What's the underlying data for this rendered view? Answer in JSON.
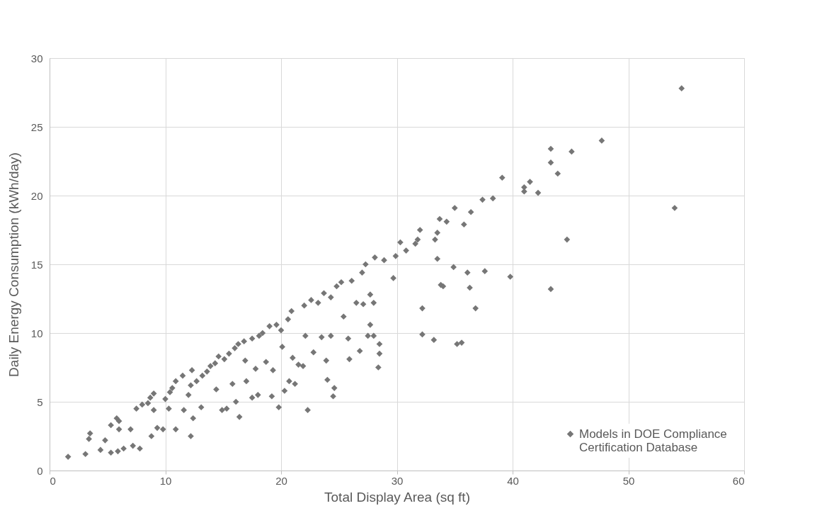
{
  "chart_data": {
    "type": "scatter",
    "xlabel": "Total Display Area (sq ft)",
    "ylabel": "Daily Energy Consumption (kWh/day)",
    "xlim": [
      0,
      60
    ],
    "xticks": [
      0,
      10,
      20,
      30,
      40,
      50,
      60
    ],
    "ylim": [
      0,
      30
    ],
    "yticks": [
      0,
      5,
      10,
      15,
      20,
      25,
      30
    ],
    "grid": true,
    "legend": "bottom right",
    "marker": "diamond",
    "series": [
      {
        "name": "Models in DOE Compliance Certification Database",
        "color": "#767676",
        "x": [
          1.6,
          3.1,
          3.4,
          3.5,
          4.4,
          4.8,
          5.3,
          5.3,
          5.9,
          5.8,
          6.0,
          6.0,
          6.4,
          7.0,
          7.2,
          7.5,
          7.8,
          8.0,
          8.5,
          8.7,
          8.8,
          9.0,
          9.0,
          9.3,
          9.8,
          10.0,
          10.4,
          10.3,
          10.6,
          10.9,
          10.9,
          11.5,
          11.6,
          12.0,
          12.2,
          12.3,
          12.2,
          12.4,
          12.7,
          13.1,
          13.2,
          13.6,
          13.9,
          14.3,
          14.6,
          14.4,
          14.9,
          15.1,
          15.3,
          15.5,
          15.8,
          16.0,
          16.1,
          16.3,
          16.4,
          16.8,
          16.9,
          17.0,
          17.5,
          17.5,
          17.8,
          18.1,
          18.0,
          18.4,
          18.7,
          19.0,
          19.2,
          19.3,
          19.6,
          20.0,
          19.8,
          20.1,
          20.3,
          20.6,
          20.7,
          20.9,
          21.0,
          21.2,
          21.5,
          21.9,
          22.0,
          22.1,
          22.3,
          22.6,
          22.8,
          23.2,
          23.5,
          23.7,
          23.9,
          24.0,
          24.3,
          24.3,
          24.5,
          24.6,
          24.8,
          25.2,
          25.4,
          25.8,
          25.9,
          26.1,
          26.5,
          26.8,
          27.0,
          27.1,
          27.3,
          27.5,
          27.7,
          27.7,
          28.0,
          28.0,
          28.1,
          28.4,
          28.5,
          28.5,
          28.9,
          29.7,
          29.9,
          30.3,
          30.8,
          31.6,
          31.8,
          32.0,
          32.2,
          32.2,
          33.2,
          33.3,
          33.5,
          33.5,
          33.8,
          34.0,
          33.7,
          34.3,
          34.9,
          35.0,
          35.2,
          35.6,
          35.8,
          36.1,
          36.3,
          36.4,
          36.8,
          37.4,
          37.6,
          38.3,
          39.1,
          39.8,
          41.0,
          41.0,
          41.5,
          42.2,
          43.3,
          43.3,
          43.3,
          43.9,
          44.7,
          45.1,
          47.7,
          54.0,
          54.6
        ],
        "values": [
          1.0,
          1.2,
          2.3,
          2.7,
          1.5,
          2.2,
          1.3,
          3.3,
          1.4,
          3.8,
          3.6,
          3.0,
          1.6,
          3.0,
          1.8,
          4.5,
          1.6,
          4.8,
          4.9,
          5.3,
          2.5,
          5.6,
          4.4,
          3.1,
          3.0,
          5.2,
          5.7,
          4.5,
          6.0,
          3.0,
          6.5,
          6.9,
          4.4,
          5.5,
          6.2,
          7.3,
          2.5,
          3.8,
          6.5,
          4.6,
          6.9,
          7.2,
          7.6,
          7.8,
          8.3,
          5.9,
          4.4,
          8.1,
          4.5,
          8.5,
          6.3,
          8.9,
          5.0,
          9.2,
          3.9,
          9.4,
          8.0,
          6.5,
          9.6,
          5.3,
          7.4,
          9.8,
          5.5,
          10.0,
          7.9,
          10.5,
          5.4,
          7.3,
          10.6,
          10.2,
          4.6,
          9.0,
          5.8,
          11.0,
          6.5,
          11.6,
          8.2,
          6.3,
          7.7,
          7.6,
          12.0,
          9.8,
          4.4,
          12.4,
          8.6,
          12.2,
          9.7,
          12.9,
          8.0,
          6.6,
          12.6,
          9.8,
          5.4,
          6.0,
          13.4,
          13.7,
          11.2,
          9.6,
          8.1,
          13.8,
          12.2,
          8.7,
          14.4,
          12.1,
          15.0,
          9.8,
          12.8,
          10.6,
          12.2,
          9.8,
          15.5,
          7.5,
          9.2,
          8.5,
          15.3,
          14.0,
          15.6,
          16.6,
          16.0,
          16.5,
          16.8,
          17.5,
          11.8,
          9.9,
          9.5,
          16.8,
          17.3,
          15.4,
          13.5,
          13.4,
          18.3,
          18.1,
          14.8,
          19.1,
          9.2,
          9.3,
          17.9,
          14.4,
          13.3,
          18.8,
          11.8,
          19.7,
          14.5,
          19.8,
          21.3,
          14.1,
          20.3,
          20.6,
          21.0,
          20.2,
          23.4,
          22.4,
          13.2,
          21.6,
          16.8,
          23.2,
          24.0,
          19.1,
          27.8
        ]
      }
    ]
  }
}
